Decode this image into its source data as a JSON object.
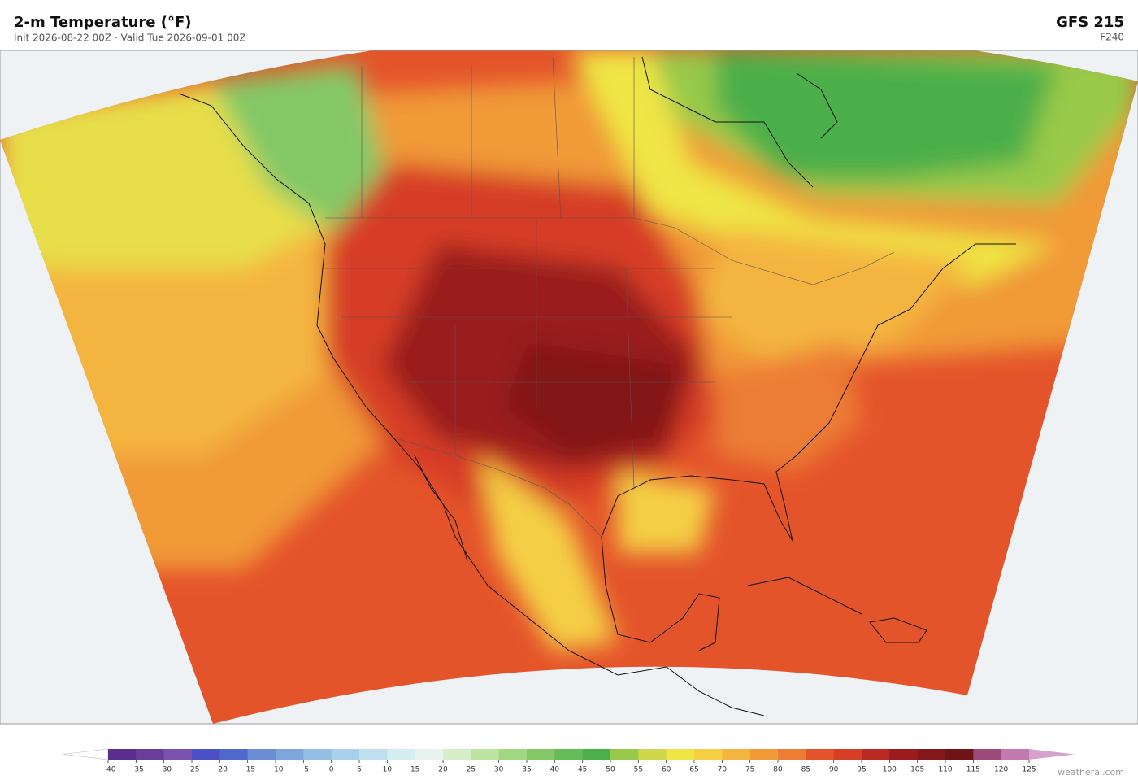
{
  "header": {
    "title": "2-m Temperature  (°F)",
    "subtitle": "Init 2026-08-22 00Z   ·   Valid Tue 2026-09-01 00Z",
    "model": "GFS  215",
    "forecast_hour": "F240"
  },
  "colorbar": {
    "ticks": [
      {
        "value": -40,
        "label": "−40"
      },
      {
        "value": -35,
        "label": "−35"
      },
      {
        "value": -30,
        "label": "−30"
      },
      {
        "value": -25,
        "label": "−25"
      },
      {
        "value": -20,
        "label": "−20"
      },
      {
        "value": -15,
        "label": "−15"
      },
      {
        "value": -10,
        "label": "−10"
      },
      {
        "value": -5,
        "label": "−5"
      },
      0,
      5,
      10,
      15,
      20,
      25,
      30,
      35,
      40,
      45,
      50,
      55,
      60,
      65,
      70,
      75,
      80,
      85,
      90,
      95,
      100,
      105,
      110,
      115,
      120,
      125
    ],
    "colors": [
      "#5c2d91",
      "#6a3d9a",
      "#7a52b0",
      "#4b50c4",
      "#5067cc",
      "#6b8ed6",
      "#7ea6dc",
      "#93bfe4",
      "#a9d0ea",
      "#c0e0f0",
      "#d6ecf3",
      "#e6f3ef",
      "#d6eec8",
      "#bde3a0",
      "#a2d681",
      "#84c866",
      "#64bb58",
      "#4caf4a",
      "#98c94a",
      "#cfd84a",
      "#efe544",
      "#f4cf45",
      "#f4b540",
      "#f09a38",
      "#ec7d34",
      "#e4542a",
      "#d63e26",
      "#b82a22",
      "#9a1c1e",
      "#831719",
      "#6e1416",
      "#9c4a7a",
      "#c07aae"
    ],
    "under_color": "#ffffff",
    "over_color": "#d8a0cc"
  },
  "footer": {
    "credit": "weatherai.com"
  }
}
